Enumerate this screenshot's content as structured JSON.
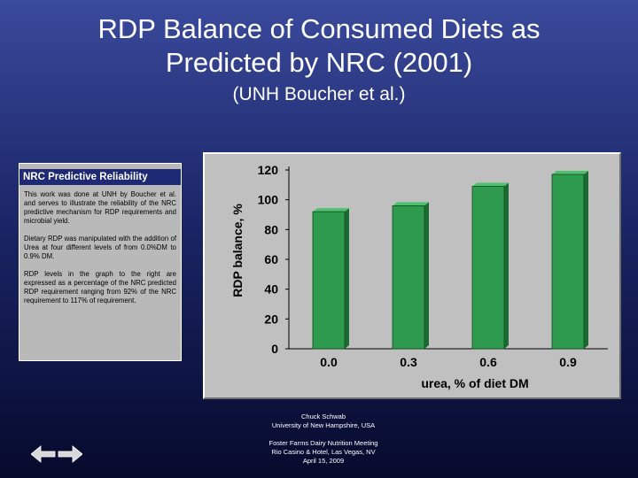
{
  "slide": {
    "title_line1": "RDP Balance of Consumed Diets as",
    "title_line2": "Predicted by NRC (2001)",
    "subtitle": "(UNH Boucher et al.)"
  },
  "panel": {
    "heading": "NRC Predictive Reliability",
    "paragraphs": [
      "This work was done at UNH by Boucher et al. and serves to illustrate the reliability of the NRC predictive mechanism for RDP requirements and microbial yield.",
      "Dietary RDP was manipulated with the addition of Urea at four different levels of from 0.0%DM to 0.9% DM.",
      "RDP levels in the graph to the right are expressed as a percentage of the NRC predicted RDP requirement ranging from 92% of the NRC requirement to 117% of requirement."
    ]
  },
  "chart_data": {
    "type": "bar",
    "categories": [
      "0.0",
      "0.3",
      "0.6",
      "0.9"
    ],
    "values": [
      92,
      96,
      109,
      117
    ],
    "title": "",
    "xlabel": "urea, % of diet DM",
    "ylabel": "RDP balance, %",
    "ylim": [
      0,
      120
    ],
    "yticks": [
      "0",
      "20",
      "40",
      "60",
      "80",
      "100",
      "120"
    ],
    "grid": false,
    "bar_color": "#2e9a4e"
  },
  "footer": {
    "author": "Chuck Schwab",
    "affiliation": "University of New Hampshire, USA",
    "event": "Foster Farms Dairy Nutrition Meeting",
    "venue": "Rio Casino & Hotel, Las Vegas, NV",
    "date": "April 15, 2009"
  },
  "nav": {
    "prev_icon": "arrow-left-icon",
    "next_icon": "arrow-right-icon"
  }
}
